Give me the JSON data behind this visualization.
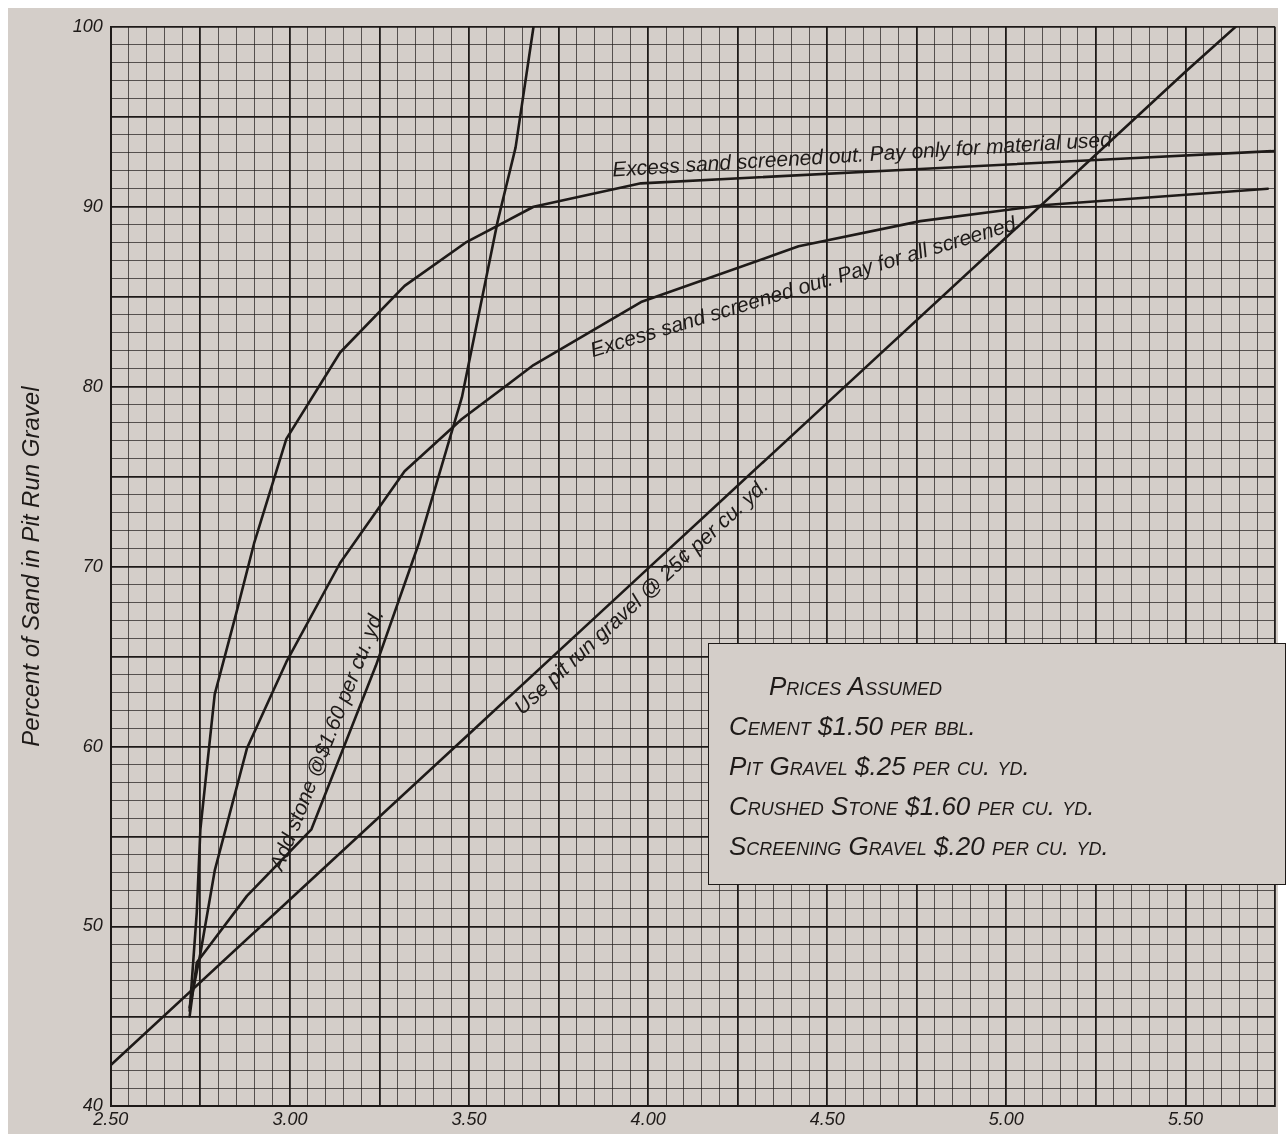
{
  "chart_data": {
    "type": "line",
    "ylabel": "Percent of Sand in Pit Run Gravel",
    "xlim": [
      2.5,
      5.75
    ],
    "ylim": [
      40,
      100
    ],
    "grid": true,
    "legend": false,
    "marker": "none",
    "line_style": "solid",
    "xticks": [
      {
        "value": 2.5,
        "label": "2.50"
      },
      {
        "value": 2.55,
        "label": null
      },
      {
        "value": 2.6,
        "label": null
      },
      {
        "value": 2.65,
        "label": null
      },
      {
        "value": 2.7,
        "label": null
      },
      {
        "value": 2.75,
        "label": null
      },
      {
        "value": 2.8,
        "label": null
      },
      {
        "value": 2.85,
        "label": null
      },
      {
        "value": 2.9,
        "label": null
      },
      {
        "value": 2.95,
        "label": null
      },
      {
        "value": 3.0,
        "label": "3.00"
      },
      {
        "value": 3.05,
        "label": null
      },
      {
        "value": 3.1,
        "label": null
      },
      {
        "value": 3.15,
        "label": null
      },
      {
        "value": 3.2,
        "label": null
      },
      {
        "value": 3.25,
        "label": null
      },
      {
        "value": 3.3,
        "label": null
      },
      {
        "value": 3.35,
        "label": null
      },
      {
        "value": 3.4,
        "label": null
      },
      {
        "value": 3.45,
        "label": null
      },
      {
        "value": 3.5,
        "label": "3.50"
      },
      {
        "value": 3.55,
        "label": null
      },
      {
        "value": 3.6,
        "label": null
      },
      {
        "value": 3.65,
        "label": null
      },
      {
        "value": 3.7,
        "label": null
      },
      {
        "value": 3.75,
        "label": null
      },
      {
        "value": 3.8,
        "label": null
      },
      {
        "value": 3.85,
        "label": null
      },
      {
        "value": 3.9,
        "label": null
      },
      {
        "value": 3.95,
        "label": null
      },
      {
        "value": 4.0,
        "label": "4.00"
      },
      {
        "value": 4.05,
        "label": null
      },
      {
        "value": 4.1,
        "label": null
      },
      {
        "value": 4.15,
        "label": null
      },
      {
        "value": 4.2,
        "label": null
      },
      {
        "value": 4.25,
        "label": null
      },
      {
        "value": 4.3,
        "label": null
      },
      {
        "value": 4.35,
        "label": null
      },
      {
        "value": 4.4,
        "label": null
      },
      {
        "value": 4.45,
        "label": null
      },
      {
        "value": 4.5,
        "label": "4.50"
      },
      {
        "value": 4.55,
        "label": null
      },
      {
        "value": 4.6,
        "label": null
      },
      {
        "value": 4.65,
        "label": null
      },
      {
        "value": 4.7,
        "label": null
      },
      {
        "value": 4.75,
        "label": null
      },
      {
        "value": 4.8,
        "label": null
      },
      {
        "value": 4.85,
        "label": null
      },
      {
        "value": 4.9,
        "label": null
      },
      {
        "value": 4.95,
        "label": null
      },
      {
        "value": 5.0,
        "label": "5.00"
      },
      {
        "value": 5.05,
        "label": null
      },
      {
        "value": 5.1,
        "label": null
      },
      {
        "value": 5.15,
        "label": null
      },
      {
        "value": 5.2,
        "label": null
      },
      {
        "value": 5.25,
        "label": null
      },
      {
        "value": 5.3,
        "label": null
      },
      {
        "value": 5.35,
        "label": null
      },
      {
        "value": 5.4,
        "label": null
      },
      {
        "value": 5.45,
        "label": null
      },
      {
        "value": 5.5,
        "label": "5.50"
      },
      {
        "value": 5.55,
        "label": null
      },
      {
        "value": 5.6,
        "label": null
      },
      {
        "value": 5.65,
        "label": null
      },
      {
        "value": 5.7,
        "label": null
      },
      {
        "value": 5.75,
        "label": null
      }
    ],
    "yticks": [
      40,
      {
        "value": 41,
        "label": null
      },
      {
        "value": 42,
        "label": null
      },
      {
        "value": 43,
        "label": null
      },
      {
        "value": 44,
        "label": null
      },
      {
        "value": 45,
        "label": null
      },
      {
        "value": 46,
        "label": null
      },
      {
        "value": 47,
        "label": null
      },
      {
        "value": 48,
        "label": null
      },
      {
        "value": 49,
        "label": null
      },
      50,
      {
        "value": 51,
        "label": null
      },
      {
        "value": 52,
        "label": null
      },
      {
        "value": 53,
        "label": null
      },
      {
        "value": 54,
        "label": null
      },
      {
        "value": 55,
        "label": null
      },
      {
        "value": 56,
        "label": null
      },
      {
        "value": 57,
        "label": null
      },
      {
        "value": 58,
        "label": null
      },
      {
        "value": 59,
        "label": null
      },
      60,
      {
        "value": 61,
        "label": null
      },
      {
        "value": 62,
        "label": null
      },
      {
        "value": 63,
        "label": null
      },
      {
        "value": 64,
        "label": null
      },
      {
        "value": 65,
        "label": null
      },
      {
        "value": 66,
        "label": null
      },
      {
        "value": 67,
        "label": null
      },
      {
        "value": 68,
        "label": null
      },
      {
        "value": 69,
        "label": null
      },
      70,
      {
        "value": 71,
        "label": null
      },
      {
        "value": 72,
        "label": null
      },
      {
        "value": 73,
        "label": null
      },
      {
        "value": 74,
        "label": null
      },
      {
        "value": 75,
        "label": null
      },
      {
        "value": 76,
        "label": null
      },
      {
        "value": 77,
        "label": null
      },
      {
        "value": 78,
        "label": null
      },
      {
        "value": 79,
        "label": null
      },
      80,
      {
        "value": 81,
        "label": null
      },
      {
        "value": 82,
        "label": null
      },
      {
        "value": 83,
        "label": null
      },
      {
        "value": 84,
        "label": null
      },
      {
        "value": 85,
        "label": null
      },
      {
        "value": 86,
        "label": null
      },
      {
        "value": 87,
        "label": null
      },
      {
        "value": 88,
        "label": null
      },
      {
        "value": 89,
        "label": null
      },
      90,
      {
        "value": 91,
        "label": null
      },
      {
        "value": 92,
        "label": null
      },
      {
        "value": 93,
        "label": null
      },
      {
        "value": 94,
        "label": null
      },
      {
        "value": 95,
        "label": null
      },
      {
        "value": 96,
        "label": null
      },
      {
        "value": 97,
        "label": null
      },
      {
        "value": 98,
        "label": null
      },
      {
        "value": 99,
        "label": null
      },
      100
    ],
    "series": [
      {
        "color": "#1e1a18",
        "x": [
          2.5,
          3.0,
          3.5,
          4.0,
          4.5,
          5.0,
          5.5,
          5.64
        ],
        "values": [
          42.3,
          51.5,
          60.7,
          69.9,
          79.1,
          88.3,
          97.5,
          100
        ]
      },
      {
        "color": "#1e1a18",
        "x": [
          2.72,
          2.74,
          2.88,
          3.06,
          3.24,
          3.36,
          3.48,
          3.58,
          3.63,
          3.68
        ],
        "values": [
          45.0,
          48.0,
          51.7,
          55.4,
          64.5,
          71.3,
          79.4,
          89.2,
          93.3,
          100
        ]
      },
      {
        "color": "#1e1a18",
        "x": [
          2.72,
          2.75,
          2.79,
          2.88,
          2.99,
          3.14,
          3.32,
          3.48,
          3.68,
          3.98,
          4.42,
          4.76,
          5.11,
          5.73
        ],
        "values": [
          45.5,
          48.5,
          53.1,
          59.9,
          64.7,
          70.2,
          75.3,
          78.2,
          81.2,
          84.7,
          87.8,
          89.2,
          90.1,
          91.0
        ]
      },
      {
        "color": "#1e1a18",
        "x": [
          2.72,
          2.74,
          2.75,
          2.79,
          2.85,
          2.9,
          2.99,
          3.14,
          3.32,
          3.49,
          3.68,
          3.98,
          4.76,
          5.25,
          5.75
        ],
        "values": [
          45.3,
          50.8,
          55.4,
          62.9,
          67.4,
          71.3,
          77.1,
          81.9,
          85.6,
          88.0,
          90.0,
          91.3,
          92.1,
          92.6,
          93.1
        ]
      }
    ],
    "annotations": [
      {
        "text": "Excess sand screened out. Pay only for material used",
        "x": 4.6,
        "y": 91.9
      },
      {
        "text": "Excess sand screened out. Pay for all screened",
        "x": 4.4,
        "y": 87.7
      },
      {
        "text": "Add stone @$1.60 per cu. yd.",
        "x": 3.15,
        "y": 60.0
      },
      {
        "text": "Use pit run gravel @ 25¢ per cu. yd.",
        "x": 3.95,
        "y": 69.0
      },
      "Prices Assumed",
      "Cement $1.50 per bbl.",
      "Pit Gravel $.25 per cu. yd.",
      "Crushed Stone $1.60 per cu. yd.",
      "Screening Gravel $.20 per cu. yd."
    ]
  }
}
